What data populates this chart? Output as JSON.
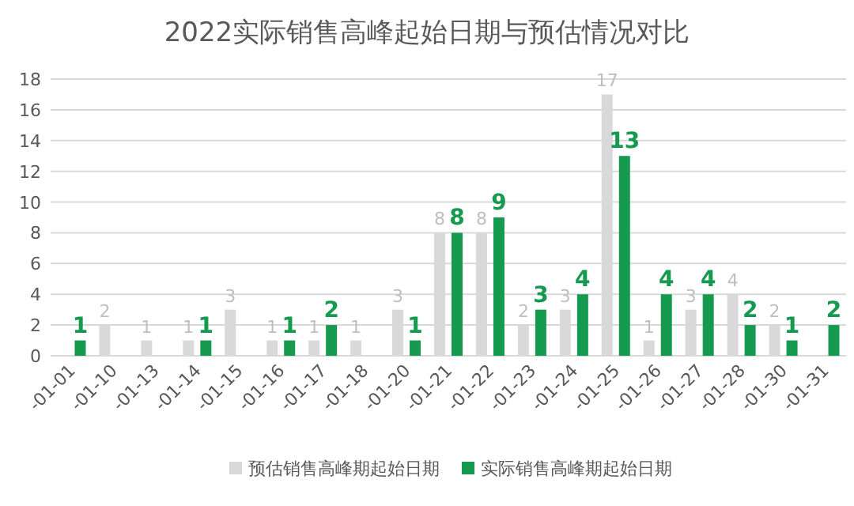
{
  "chart_data": {
    "type": "bar",
    "title": "2022实际销售高峰起始日期与预估情况对比",
    "categories": [
      "-01-01",
      "-01-10",
      "-01-13",
      "-01-14",
      "-01-15",
      "-01-16",
      "-01-17",
      "-01-18",
      "-01-20",
      "-01-21",
      "-01-22",
      "-01-23",
      "-01-24",
      "-01-25",
      "-01-26",
      "-01-27",
      "-01-28",
      "-01-30",
      "-01-31"
    ],
    "series": [
      {
        "name": "预估销售高峰期起始日期",
        "color": "#d9d9d9",
        "values": [
          null,
          2,
          1,
          1,
          3,
          1,
          1,
          1,
          3,
          8,
          8,
          2,
          3,
          17,
          1,
          3,
          4,
          2,
          null
        ]
      },
      {
        "name": "实际销售高峰期起始日期",
        "color": "#159a4f",
        "values": [
          1,
          null,
          null,
          1,
          null,
          1,
          2,
          null,
          1,
          8,
          9,
          3,
          4,
          13,
          4,
          4,
          2,
          1,
          2
        ]
      }
    ],
    "ylim": [
      0,
      18
    ],
    "yticks": [
      0,
      2,
      4,
      6,
      8,
      10,
      12,
      14,
      16,
      18
    ],
    "grid": "y",
    "legend": "bottom",
    "data_labels": true
  }
}
